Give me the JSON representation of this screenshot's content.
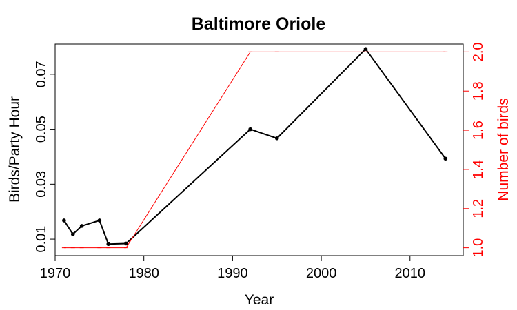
{
  "chart_data": {
    "type": "line",
    "title": "Baltimore Oriole",
    "xlabel": "Year",
    "ylabel": "Birds/Party Hour",
    "y2label": "Number of birds",
    "xlim": [
      1970,
      2016
    ],
    "ylim": [
      0.004,
      0.081
    ],
    "y2lim": [
      0.96,
      2.04
    ],
    "xticks": [
      1970,
      1980,
      1990,
      2000,
      2010
    ],
    "yticks": [
      0.01,
      0.03,
      0.05,
      0.07
    ],
    "yticklabels": [
      "0.01",
      "0.03",
      "0.05",
      "0.07"
    ],
    "y2ticks": [
      1.0,
      1.2,
      1.4,
      1.6,
      1.8,
      2.0
    ],
    "y2ticklabels": [
      "1.0",
      "1.2",
      "1.4",
      "1.6",
      "1.8",
      "2.0"
    ],
    "grid": false,
    "colors": {
      "primary": "#000000",
      "secondary": "#ff0000"
    },
    "series": [
      {
        "axis": "left",
        "color": "#000000",
        "x": [
          1971,
          1972,
          1973,
          1975,
          1976,
          1978,
          1992,
          1995,
          2005,
          2014
        ],
        "values": [
          0.0168,
          0.0118,
          0.0148,
          0.0168,
          0.0082,
          0.0084,
          0.05,
          0.0467,
          0.0792,
          0.0393
        ]
      },
      {
        "axis": "right",
        "color": "#ff0000",
        "x": [
          1971,
          1972,
          1973,
          1975,
          1976,
          1978,
          1992,
          1995,
          2005,
          2014
        ],
        "values": [
          1,
          1,
          1,
          1,
          1,
          1,
          2,
          2,
          2,
          2
        ]
      }
    ]
  }
}
